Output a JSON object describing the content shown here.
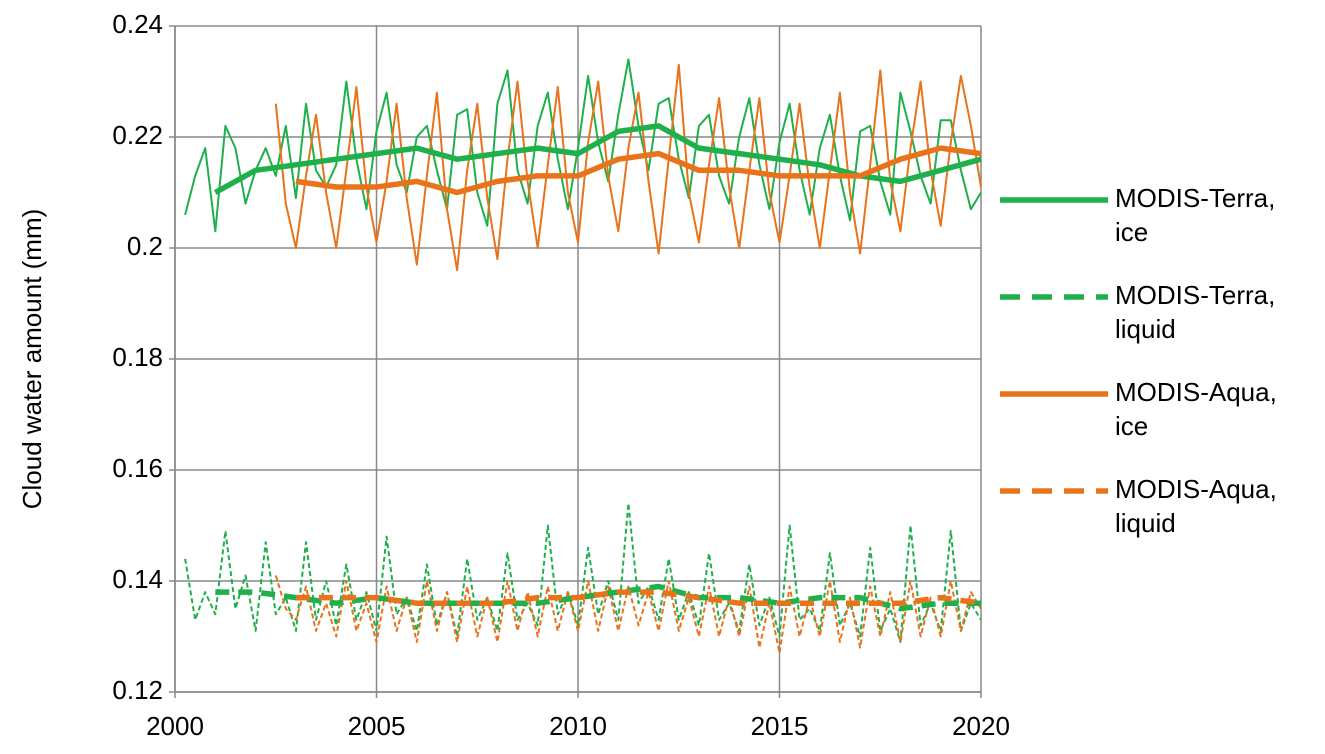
{
  "chart_data": {
    "type": "line",
    "ylabel": "Cloud water amount (mm)",
    "xlim": [
      2000,
      2020
    ],
    "ylim": [
      0.12,
      0.24
    ],
    "xticks": [
      2000,
      2005,
      2010,
      2015,
      2020
    ],
    "yticks": [
      0.12,
      0.14,
      0.16,
      0.18,
      0.2,
      0.22,
      0.24
    ],
    "grid": true,
    "x": [
      2000.25,
      2000.5,
      2000.75,
      2001,
      2001.25,
      2001.5,
      2001.75,
      2002,
      2002.25,
      2002.5,
      2002.75,
      2003,
      2003.25,
      2003.5,
      2003.75,
      2004,
      2004.25,
      2004.5,
      2004.75,
      2005,
      2005.25,
      2005.5,
      2005.75,
      2006,
      2006.25,
      2006.5,
      2006.75,
      2007,
      2007.25,
      2007.5,
      2007.75,
      2008,
      2008.25,
      2008.5,
      2008.75,
      2009,
      2009.25,
      2009.5,
      2009.75,
      2010,
      2010.25,
      2010.5,
      2010.75,
      2011,
      2011.25,
      2011.5,
      2011.75,
      2012,
      2012.25,
      2012.5,
      2012.75,
      2013,
      2013.25,
      2013.5,
      2013.75,
      2014,
      2014.25,
      2014.5,
      2014.75,
      2015,
      2015.25,
      2015.5,
      2015.75,
      2016,
      2016.25,
      2016.5,
      2016.75,
      2017,
      2017.25,
      2017.5,
      2017.75,
      2018,
      2018.25,
      2018.5,
      2018.75,
      2019,
      2019.25,
      2019.5,
      2019.75,
      2020
    ],
    "mean_x": [
      2001,
      2002,
      2003,
      2004,
      2005,
      2006,
      2007,
      2008,
      2009,
      2010,
      2011,
      2012,
      2013,
      2014,
      2015,
      2016,
      2017,
      2018,
      2019,
      2020
    ],
    "series": [
      {
        "name": "MODIS-Terra, ice",
        "color": "#1fb04c",
        "dashed": false,
        "values": [
          0.206,
          0.213,
          0.218,
          0.203,
          0.222,
          0.218,
          0.208,
          0.214,
          0.218,
          0.213,
          0.222,
          0.209,
          0.226,
          0.214,
          0.211,
          0.215,
          0.23,
          0.216,
          0.207,
          0.221,
          0.228,
          0.215,
          0.21,
          0.22,
          0.222,
          0.214,
          0.207,
          0.224,
          0.225,
          0.21,
          0.204,
          0.226,
          0.232,
          0.214,
          0.208,
          0.222,
          0.228,
          0.216,
          0.207,
          0.218,
          0.231,
          0.219,
          0.212,
          0.224,
          0.234,
          0.222,
          0.214,
          0.226,
          0.227,
          0.216,
          0.209,
          0.222,
          0.224,
          0.213,
          0.208,
          0.22,
          0.227,
          0.215,
          0.207,
          0.219,
          0.226,
          0.214,
          0.206,
          0.218,
          0.224,
          0.213,
          0.205,
          0.221,
          0.222,
          0.212,
          0.206,
          0.228,
          0.221,
          0.213,
          0.208,
          0.223,
          0.223,
          0.214,
          0.207,
          0.21
        ],
        "mean": [
          0.21,
          0.214,
          0.215,
          0.216,
          0.217,
          0.218,
          0.216,
          0.217,
          0.218,
          0.217,
          0.221,
          0.222,
          0.218,
          0.217,
          0.216,
          0.215,
          0.213,
          0.212,
          0.214,
          0.216
        ]
      },
      {
        "name": "MODIS-Terra, liquid",
        "color": "#1fb04c",
        "dashed": true,
        "values": [
          0.144,
          0.133,
          0.138,
          0.134,
          0.149,
          0.135,
          0.141,
          0.131,
          0.147,
          0.134,
          0.137,
          0.131,
          0.147,
          0.133,
          0.14,
          0.132,
          0.143,
          0.133,
          0.138,
          0.131,
          0.148,
          0.134,
          0.137,
          0.131,
          0.143,
          0.132,
          0.138,
          0.13,
          0.144,
          0.133,
          0.137,
          0.131,
          0.145,
          0.133,
          0.136,
          0.132,
          0.15,
          0.134,
          0.138,
          0.132,
          0.146,
          0.134,
          0.14,
          0.133,
          0.154,
          0.136,
          0.139,
          0.133,
          0.144,
          0.133,
          0.138,
          0.132,
          0.145,
          0.133,
          0.136,
          0.131,
          0.143,
          0.132,
          0.137,
          0.13,
          0.15,
          0.133,
          0.135,
          0.131,
          0.145,
          0.132,
          0.136,
          0.13,
          0.146,
          0.131,
          0.135,
          0.129,
          0.15,
          0.132,
          0.136,
          0.131,
          0.149,
          0.131,
          0.136,
          0.133
        ],
        "mean": [
          0.138,
          0.138,
          0.137,
          0.136,
          0.137,
          0.136,
          0.136,
          0.136,
          0.136,
          0.137,
          0.138,
          0.139,
          0.137,
          0.137,
          0.136,
          0.137,
          0.137,
          0.135,
          0.136,
          0.136
        ]
      },
      {
        "name": "MODIS-Aqua, ice",
        "color": "#e8731a",
        "dashed": false,
        "values": [
          null,
          null,
          null,
          null,
          null,
          null,
          null,
          null,
          null,
          0.226,
          0.208,
          0.2,
          0.213,
          0.224,
          0.21,
          0.2,
          0.214,
          0.229,
          0.211,
          0.201,
          0.212,
          0.226,
          0.209,
          0.197,
          0.213,
          0.228,
          0.207,
          0.196,
          0.214,
          0.226,
          0.209,
          0.198,
          0.216,
          0.23,
          0.212,
          0.2,
          0.215,
          0.229,
          0.21,
          0.201,
          0.219,
          0.23,
          0.213,
          0.203,
          0.218,
          0.228,
          0.212,
          0.199,
          0.216,
          0.233,
          0.21,
          0.201,
          0.215,
          0.227,
          0.211,
          0.2,
          0.214,
          0.227,
          0.21,
          0.201,
          0.213,
          0.226,
          0.211,
          0.2,
          0.214,
          0.228,
          0.21,
          0.199,
          0.215,
          0.232,
          0.212,
          0.203,
          0.218,
          0.23,
          0.214,
          0.204,
          0.219,
          0.231,
          0.222,
          0.211
        ],
        "mean": [
          null,
          null,
          0.212,
          0.211,
          0.211,
          0.212,
          0.21,
          0.212,
          0.213,
          0.213,
          0.216,
          0.217,
          0.214,
          0.214,
          0.213,
          0.213,
          0.213,
          0.216,
          0.218,
          0.217
        ]
      },
      {
        "name": "MODIS-Aqua, liquid",
        "color": "#e8731a",
        "dashed": true,
        "values": [
          null,
          null,
          null,
          null,
          null,
          null,
          null,
          null,
          null,
          0.141,
          0.135,
          0.133,
          0.139,
          0.131,
          0.136,
          0.13,
          0.14,
          0.131,
          0.136,
          0.129,
          0.139,
          0.131,
          0.137,
          0.129,
          0.14,
          0.131,
          0.138,
          0.129,
          0.139,
          0.13,
          0.137,
          0.129,
          0.14,
          0.131,
          0.138,
          0.13,
          0.139,
          0.131,
          0.138,
          0.131,
          0.14,
          0.131,
          0.139,
          0.131,
          0.139,
          0.132,
          0.138,
          0.131,
          0.14,
          0.131,
          0.137,
          0.13,
          0.139,
          0.13,
          0.137,
          0.13,
          0.139,
          0.128,
          0.136,
          0.127,
          0.139,
          0.13,
          0.137,
          0.13,
          0.14,
          0.129,
          0.137,
          0.128,
          0.139,
          0.13,
          0.138,
          0.129,
          0.14,
          0.13,
          0.137,
          0.13,
          0.14,
          0.131,
          0.138,
          0.135
        ],
        "mean": [
          null,
          null,
          0.137,
          0.137,
          0.137,
          0.136,
          0.136,
          0.136,
          0.137,
          0.137,
          0.138,
          0.138,
          0.137,
          0.136,
          0.136,
          0.136,
          0.136,
          0.136,
          0.137,
          0.136
        ]
      }
    ]
  }
}
